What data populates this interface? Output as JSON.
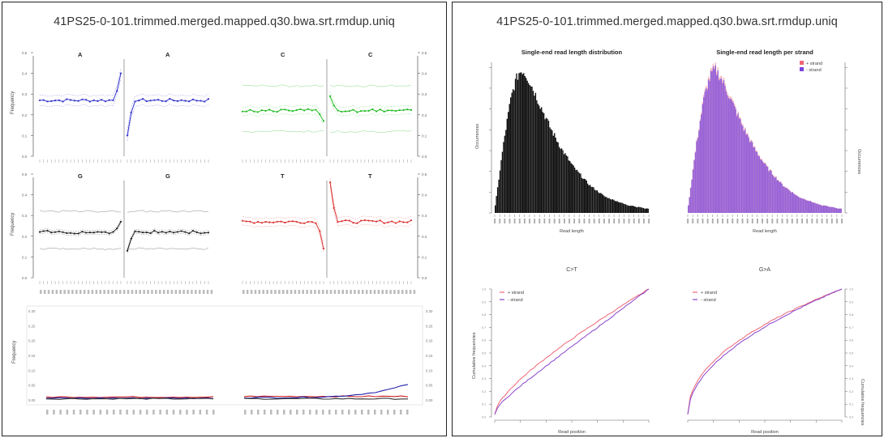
{
  "left_figure": {
    "title": "41PS25-0-101.trimmed.merged.mapped.q30.bwa.srt.rmdup.uniq",
    "base_panels": [
      {
        "labels": [
          "A",
          "A"
        ],
        "color": "#3333cc",
        "mean": 0.27,
        "band": 0.025,
        "jump": [
          0.4,
          0.1
        ],
        "outer": null
      },
      {
        "labels": [
          "C",
          "C"
        ],
        "color": "#22bb22",
        "mean": 0.22,
        "band": 0.02,
        "jump": [
          0.17,
          0.29
        ],
        "outer": [
          0.34,
          0.12
        ]
      },
      {
        "labels": [
          "G",
          "G"
        ],
        "color": "#222222",
        "mean": 0.22,
        "band": 0.01,
        "jump": [
          0.27,
          0.13
        ],
        "outer": [
          0.32,
          0.14
        ]
      },
      {
        "labels": [
          "T",
          "T"
        ],
        "color": "#dd3333",
        "mean": 0.27,
        "band": 0.02,
        "jump": [
          0.14,
          0.46
        ],
        "outer": null
      }
    ],
    "frequency_label": "Frequency",
    "freq_ticks": [
      "0.0",
      "0.1",
      "0.2",
      "0.3",
      "0.4",
      "0.5"
    ],
    "mismatch_ticks": [
      "0.00",
      "0.05",
      "0.10",
      "0.15",
      "0.20",
      "0.25",
      "0.30"
    ]
  },
  "right_figure": {
    "title": "41PS25-0-101.trimmed.merged.mapped.q30.bwa.srt.rmdup.uniq",
    "length_dist": {
      "title": "Single-end read length distribution",
      "xlabel": "Read length",
      "ylabel": "Occurrences"
    },
    "length_strand": {
      "title": "Single-end read length per strand",
      "xlabel": "Read length",
      "ylabel": "Occurrences",
      "legend": [
        "+ strand",
        "- strand"
      ]
    },
    "ct": {
      "title": "C>T",
      "xlabel": "Read position",
      "ylabel": "Cumulative frequencies",
      "legend": [
        "+ strand",
        "- strand"
      ]
    },
    "ga": {
      "title": "G>A",
      "xlabel": "Read position",
      "ylabel": "Cumulative frequencies",
      "legend": [
        "+ strand",
        "- strand"
      ]
    }
  },
  "colors": {
    "plus_strand": "#ee6677",
    "minus_strand": "#8844cc",
    "purple_bars": "#7744dd",
    "blue_line": "#2222aa",
    "red_line": "#cc2222"
  },
  "chart_data": [
    {
      "type": "line",
      "title": "A",
      "ylabel": "Frequency",
      "ylim": [
        0,
        0.5
      ],
      "series": [
        {
          "values": [
            0.27,
            0.27,
            0.28,
            0.27,
            0.27,
            0.28,
            0.27,
            0.27,
            0.28,
            0.4,
            0.28,
            0.27,
            0.28,
            0.27,
            0.27,
            0.28,
            0.27,
            0.27,
            0.28,
            0.27
          ]
        }
      ]
    },
    {
      "type": "bar",
      "title": "Single-end read length distribution",
      "xlabel": "Read length",
      "ylabel": "Occurrences",
      "series": [
        {
          "values": [
            0.05,
            0.25,
            0.45,
            0.62,
            0.78,
            0.88,
            0.95,
            0.97,
            0.93,
            0.88,
            0.82,
            0.76,
            0.7,
            0.64,
            0.58,
            0.53,
            0.48,
            0.43,
            0.39,
            0.35,
            0.31,
            0.28,
            0.25,
            0.22,
            0.19,
            0.17,
            0.15,
            0.13,
            0.11,
            0.1,
            0.09,
            0.08,
            0.07,
            0.06,
            0.05,
            0.05,
            0.04,
            0.04,
            0.03,
            0.03
          ]
        }
      ]
    }
  ]
}
